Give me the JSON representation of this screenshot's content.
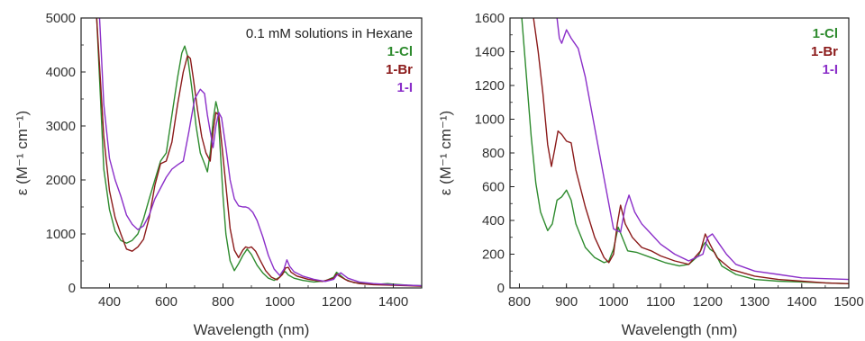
{
  "chart_data": [
    {
      "type": "line",
      "xlabel": "Wavelength (nm)",
      "ylabel": "ε (M⁻¹ cm⁻¹)",
      "xlim": [
        300,
        1500
      ],
      "ylim": [
        0,
        5000
      ],
      "xticks": [
        400,
        600,
        800,
        1000,
        1200,
        1400
      ],
      "yticks": [
        0,
        1000,
        2000,
        3000,
        4000,
        5000
      ],
      "annotation": "0.1 mM solutions in Hexane",
      "legend_position": "top-right",
      "grid": false,
      "series": [
        {
          "name": "1-Cl",
          "color": "#2e8b2e",
          "x": [
            355,
            380,
            400,
            420,
            440,
            460,
            480,
            500,
            520,
            540,
            560,
            580,
            600,
            620,
            640,
            655,
            665,
            675,
            690,
            705,
            720,
            735,
            745,
            755,
            765,
            775,
            782,
            790,
            800,
            810,
            825,
            840,
            855,
            870,
            885,
            900,
            920,
            940,
            960,
            980,
            1000,
            1010,
            1020,
            1030,
            1050,
            1080,
            1120,
            1160,
            1190,
            1200,
            1210,
            1230,
            1260,
            1300,
            1350,
            1380,
            1400,
            1450,
            1500
          ],
          "y": [
            5000,
            2200,
            1450,
            1050,
            880,
            830,
            880,
            1000,
            1280,
            1650,
            2000,
            2350,
            2500,
            3200,
            3900,
            4350,
            4480,
            4300,
            3700,
            3000,
            2500,
            2300,
            2150,
            2500,
            3100,
            3450,
            3300,
            2600,
            1700,
            1000,
            500,
            320,
            450,
            600,
            720,
            620,
            420,
            280,
            180,
            140,
            200,
            280,
            300,
            240,
            180,
            140,
            110,
            130,
            200,
            290,
            250,
            160,
            100,
            80,
            70,
            80,
            70,
            50,
            40
          ]
        },
        {
          "name": "1-Br",
          "color": "#8b1a1a",
          "x": [
            355,
            380,
            400,
            420,
            440,
            460,
            480,
            500,
            520,
            540,
            560,
            580,
            600,
            620,
            640,
            660,
            675,
            685,
            695,
            710,
            725,
            740,
            755,
            765,
            775,
            785,
            795,
            810,
            825,
            840,
            855,
            870,
            880,
            890,
            900,
            915,
            930,
            950,
            970,
            990,
            1010,
            1020,
            1030,
            1040,
            1060,
            1100,
            1150,
            1190,
            1200,
            1210,
            1240,
            1280,
            1330,
            1400,
            1450,
            1500
          ],
          "y": [
            5000,
            2800,
            1800,
            1300,
            1000,
            720,
            680,
            760,
            900,
            1300,
            1900,
            2300,
            2350,
            2700,
            3400,
            4000,
            4300,
            4250,
            3900,
            3300,
            2800,
            2500,
            2350,
            2900,
            3250,
            3200,
            2700,
            1900,
            1100,
            700,
            560,
            700,
            760,
            740,
            760,
            680,
            520,
            320,
            200,
            150,
            250,
            370,
            380,
            290,
            220,
            160,
            120,
            180,
            260,
            220,
            130,
            80,
            60,
            50,
            40,
            30
          ]
        },
        {
          "name": "1-I",
          "color": "#8b2fc9",
          "x": [
            365,
            380,
            400,
            420,
            440,
            460,
            480,
            500,
            520,
            540,
            560,
            580,
            600,
            620,
            640,
            660,
            680,
            700,
            720,
            735,
            745,
            755,
            765,
            775,
            785,
            795,
            810,
            825,
            840,
            855,
            870,
            880,
            890,
            905,
            920,
            940,
            960,
            980,
            1000,
            1015,
            1025,
            1035,
            1050,
            1080,
            1120,
            1160,
            1190,
            1200,
            1215,
            1240,
            1280,
            1330,
            1400,
            1450,
            1500
          ],
          "y": [
            5000,
            3400,
            2400,
            2000,
            1700,
            1350,
            1180,
            1080,
            1150,
            1350,
            1650,
            1850,
            2050,
            2200,
            2280,
            2350,
            2900,
            3500,
            3680,
            3600,
            3200,
            2900,
            2600,
            3000,
            3250,
            3150,
            2600,
            2000,
            1650,
            1520,
            1500,
            1500,
            1480,
            1400,
            1250,
            950,
            600,
            350,
            230,
            350,
            520,
            400,
            300,
            220,
            160,
            120,
            160,
            230,
            280,
            180,
            110,
            80,
            60,
            50,
            40
          ]
        }
      ]
    },
    {
      "type": "line",
      "xlabel": "Wavelength (nm)",
      "ylabel": "ε (M⁻¹ cm⁻¹)",
      "xlim": [
        780,
        1500
      ],
      "ylim": [
        0,
        1600
      ],
      "xticks": [
        800,
        900,
        1000,
        1100,
        1200,
        1300,
        1400,
        1500
      ],
      "yticks": [
        0,
        200,
        400,
        600,
        800,
        1000,
        1200,
        1400,
        1600
      ],
      "legend_position": "top-right",
      "grid": false,
      "series": [
        {
          "name": "1-Cl",
          "color": "#2e8b2e",
          "x": [
            805,
            815,
            825,
            835,
            845,
            860,
            870,
            880,
            890,
            900,
            910,
            920,
            940,
            960,
            980,
            990,
            1000,
            1010,
            1020,
            1030,
            1050,
            1080,
            1110,
            1140,
            1160,
            1180,
            1190,
            1195,
            1205,
            1215,
            1230,
            1260,
            1300,
            1350,
            1400,
            1450,
            1500
          ],
          "y": [
            1600,
            1250,
            900,
            620,
            450,
            340,
            380,
            520,
            540,
            580,
            520,
            380,
            240,
            180,
            150,
            160,
            230,
            360,
            290,
            220,
            210,
            180,
            150,
            130,
            140,
            190,
            250,
            270,
            230,
            210,
            130,
            80,
            50,
            40,
            35,
            30,
            25
          ]
        },
        {
          "name": "1-Br",
          "color": "#8b1a1a",
          "x": [
            830,
            840,
            850,
            860,
            868,
            875,
            882,
            890,
            900,
            910,
            920,
            940,
            960,
            980,
            990,
            1000,
            1008,
            1015,
            1025,
            1040,
            1060,
            1080,
            1100,
            1130,
            1160,
            1185,
            1195,
            1205,
            1220,
            1250,
            1300,
            1350,
            1400,
            1450,
            1500
          ],
          "y": [
            1600,
            1400,
            1150,
            850,
            720,
            820,
            930,
            910,
            870,
            860,
            700,
            480,
            300,
            180,
            150,
            200,
            380,
            490,
            380,
            300,
            240,
            220,
            190,
            160,
            140,
            220,
            320,
            260,
            180,
            110,
            70,
            50,
            40,
            30,
            25
          ]
        },
        {
          "name": "1-I",
          "color": "#8b2fc9",
          "x": [
            880,
            885,
            890,
            900,
            910,
            925,
            940,
            960,
            980,
            1000,
            1015,
            1025,
            1033,
            1045,
            1060,
            1080,
            1100,
            1130,
            1160,
            1190,
            1200,
            1210,
            1225,
            1240,
            1260,
            1300,
            1350,
            1400,
            1450,
            1500
          ],
          "y": [
            1600,
            1480,
            1450,
            1530,
            1480,
            1420,
            1250,
            950,
            650,
            350,
            330,
            480,
            550,
            450,
            380,
            320,
            260,
            200,
            160,
            200,
            300,
            320,
            260,
            200,
            140,
            100,
            80,
            60,
            55,
            50
          ]
        }
      ]
    }
  ]
}
